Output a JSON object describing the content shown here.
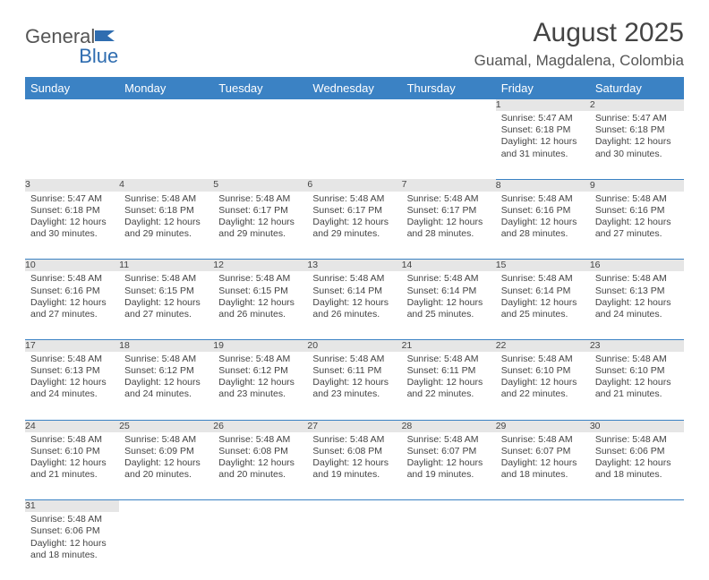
{
  "logo": {
    "text1": "General",
    "text2": "Blue",
    "shape_color": "#2f6db0"
  },
  "title": "August 2025",
  "location": "Guamal, Magdalena, Colombia",
  "header_bg": "#3b82c4",
  "header_fg": "#ffffff",
  "daynum_bg": "#e6e6e6",
  "border_color": "#3b82c4",
  "weekdays": [
    "Sunday",
    "Monday",
    "Tuesday",
    "Wednesday",
    "Thursday",
    "Friday",
    "Saturday"
  ],
  "weeks": [
    [
      null,
      null,
      null,
      null,
      null,
      {
        "n": "1",
        "sr": "Sunrise: 5:47 AM",
        "ss": "Sunset: 6:18 PM",
        "dl": "Daylight: 12 hours and 31 minutes."
      },
      {
        "n": "2",
        "sr": "Sunrise: 5:47 AM",
        "ss": "Sunset: 6:18 PM",
        "dl": "Daylight: 12 hours and 30 minutes."
      }
    ],
    [
      {
        "n": "3",
        "sr": "Sunrise: 5:47 AM",
        "ss": "Sunset: 6:18 PM",
        "dl": "Daylight: 12 hours and 30 minutes."
      },
      {
        "n": "4",
        "sr": "Sunrise: 5:48 AM",
        "ss": "Sunset: 6:18 PM",
        "dl": "Daylight: 12 hours and 29 minutes."
      },
      {
        "n": "5",
        "sr": "Sunrise: 5:48 AM",
        "ss": "Sunset: 6:17 PM",
        "dl": "Daylight: 12 hours and 29 minutes."
      },
      {
        "n": "6",
        "sr": "Sunrise: 5:48 AM",
        "ss": "Sunset: 6:17 PM",
        "dl": "Daylight: 12 hours and 29 minutes."
      },
      {
        "n": "7",
        "sr": "Sunrise: 5:48 AM",
        "ss": "Sunset: 6:17 PM",
        "dl": "Daylight: 12 hours and 28 minutes."
      },
      {
        "n": "8",
        "sr": "Sunrise: 5:48 AM",
        "ss": "Sunset: 6:16 PM",
        "dl": "Daylight: 12 hours and 28 minutes."
      },
      {
        "n": "9",
        "sr": "Sunrise: 5:48 AM",
        "ss": "Sunset: 6:16 PM",
        "dl": "Daylight: 12 hours and 27 minutes."
      }
    ],
    [
      {
        "n": "10",
        "sr": "Sunrise: 5:48 AM",
        "ss": "Sunset: 6:16 PM",
        "dl": "Daylight: 12 hours and 27 minutes."
      },
      {
        "n": "11",
        "sr": "Sunrise: 5:48 AM",
        "ss": "Sunset: 6:15 PM",
        "dl": "Daylight: 12 hours and 27 minutes."
      },
      {
        "n": "12",
        "sr": "Sunrise: 5:48 AM",
        "ss": "Sunset: 6:15 PM",
        "dl": "Daylight: 12 hours and 26 minutes."
      },
      {
        "n": "13",
        "sr": "Sunrise: 5:48 AM",
        "ss": "Sunset: 6:14 PM",
        "dl": "Daylight: 12 hours and 26 minutes."
      },
      {
        "n": "14",
        "sr": "Sunrise: 5:48 AM",
        "ss": "Sunset: 6:14 PM",
        "dl": "Daylight: 12 hours and 25 minutes."
      },
      {
        "n": "15",
        "sr": "Sunrise: 5:48 AM",
        "ss": "Sunset: 6:14 PM",
        "dl": "Daylight: 12 hours and 25 minutes."
      },
      {
        "n": "16",
        "sr": "Sunrise: 5:48 AM",
        "ss": "Sunset: 6:13 PM",
        "dl": "Daylight: 12 hours and 24 minutes."
      }
    ],
    [
      {
        "n": "17",
        "sr": "Sunrise: 5:48 AM",
        "ss": "Sunset: 6:13 PM",
        "dl": "Daylight: 12 hours and 24 minutes."
      },
      {
        "n": "18",
        "sr": "Sunrise: 5:48 AM",
        "ss": "Sunset: 6:12 PM",
        "dl": "Daylight: 12 hours and 24 minutes."
      },
      {
        "n": "19",
        "sr": "Sunrise: 5:48 AM",
        "ss": "Sunset: 6:12 PM",
        "dl": "Daylight: 12 hours and 23 minutes."
      },
      {
        "n": "20",
        "sr": "Sunrise: 5:48 AM",
        "ss": "Sunset: 6:11 PM",
        "dl": "Daylight: 12 hours and 23 minutes."
      },
      {
        "n": "21",
        "sr": "Sunrise: 5:48 AM",
        "ss": "Sunset: 6:11 PM",
        "dl": "Daylight: 12 hours and 22 minutes."
      },
      {
        "n": "22",
        "sr": "Sunrise: 5:48 AM",
        "ss": "Sunset: 6:10 PM",
        "dl": "Daylight: 12 hours and 22 minutes."
      },
      {
        "n": "23",
        "sr": "Sunrise: 5:48 AM",
        "ss": "Sunset: 6:10 PM",
        "dl": "Daylight: 12 hours and 21 minutes."
      }
    ],
    [
      {
        "n": "24",
        "sr": "Sunrise: 5:48 AM",
        "ss": "Sunset: 6:10 PM",
        "dl": "Daylight: 12 hours and 21 minutes."
      },
      {
        "n": "25",
        "sr": "Sunrise: 5:48 AM",
        "ss": "Sunset: 6:09 PM",
        "dl": "Daylight: 12 hours and 20 minutes."
      },
      {
        "n": "26",
        "sr": "Sunrise: 5:48 AM",
        "ss": "Sunset: 6:08 PM",
        "dl": "Daylight: 12 hours and 20 minutes."
      },
      {
        "n": "27",
        "sr": "Sunrise: 5:48 AM",
        "ss": "Sunset: 6:08 PM",
        "dl": "Daylight: 12 hours and 19 minutes."
      },
      {
        "n": "28",
        "sr": "Sunrise: 5:48 AM",
        "ss": "Sunset: 6:07 PM",
        "dl": "Daylight: 12 hours and 19 minutes."
      },
      {
        "n": "29",
        "sr": "Sunrise: 5:48 AM",
        "ss": "Sunset: 6:07 PM",
        "dl": "Daylight: 12 hours and 18 minutes."
      },
      {
        "n": "30",
        "sr": "Sunrise: 5:48 AM",
        "ss": "Sunset: 6:06 PM",
        "dl": "Daylight: 12 hours and 18 minutes."
      }
    ],
    [
      {
        "n": "31",
        "sr": "Sunrise: 5:48 AM",
        "ss": "Sunset: 6:06 PM",
        "dl": "Daylight: 12 hours and 18 minutes."
      },
      null,
      null,
      null,
      null,
      null,
      null
    ]
  ]
}
